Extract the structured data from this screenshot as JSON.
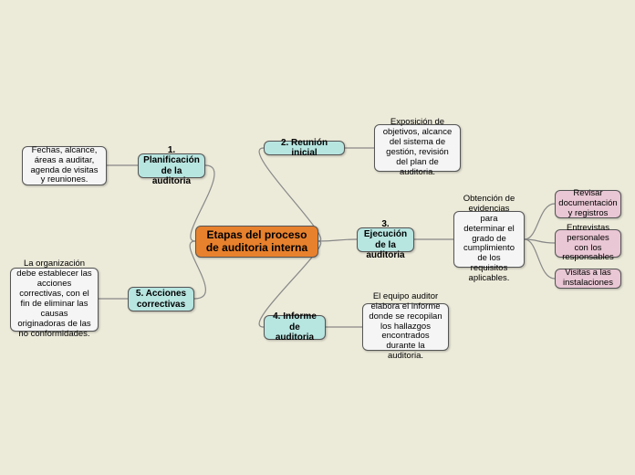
{
  "colors": {
    "bg": "#ecead9",
    "center": "#e8812d",
    "blue": "#b7e5e0",
    "gray": "#f5f5f5",
    "pink": "#e9c7d4"
  },
  "center": {
    "title": "Etapas del proceso\nde auditoria interna"
  },
  "nodes": {
    "n1": "1. Planificación\nde la auditoria",
    "n2": "2. Reunión inicial",
    "n3": "3. Ejecución\nde la auditoria",
    "n4": "4. Informe de\nauditoria",
    "n5": "5. Acciones\ncorrectivas"
  },
  "notes": {
    "g1": "Fechas, alcance, áreas a auditar, agenda de visitas y reuniones.",
    "g2": "Exposición de objetivos, alcance del sistema de gestión, revisión del plan de auditoria.",
    "g3": "Obtención de evidencias para determinar el grado de cumplimiento de los requisitos aplicables.",
    "g4": "El equipo auditor elabora el informe donde se recopilan los hallazgos encontrados durante la auditoria.",
    "g5": "La organización debe establecer las acciones correctivas, con el fin de eliminar las causas originadoras de las no conformidades."
  },
  "pinks": {
    "p1": "Revisar documentación y registros",
    "p2": "Entrevistas personales con los responsables",
    "p3": "Visitas a las instalaciones"
  }
}
